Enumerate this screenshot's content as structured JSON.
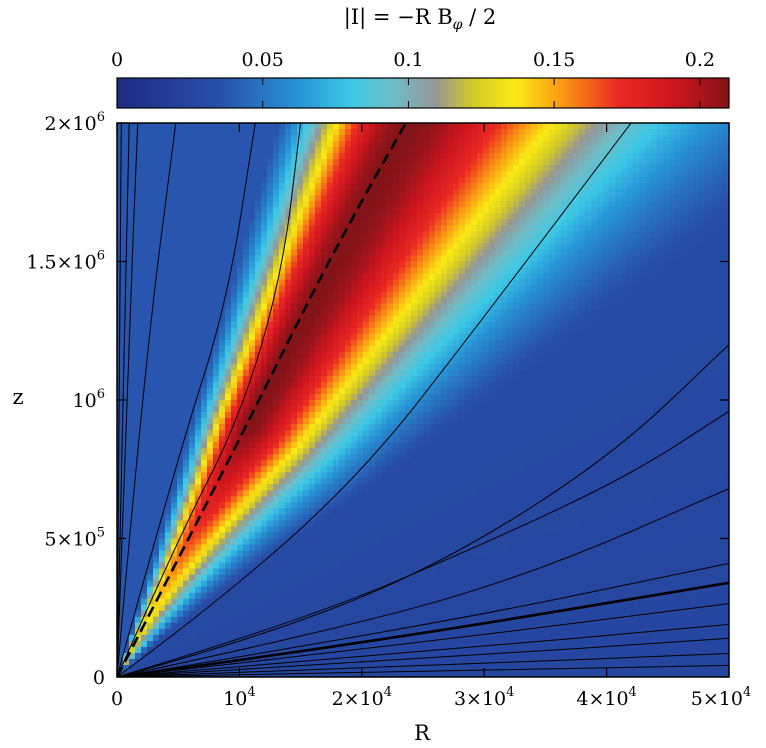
{
  "chart_data": {
    "type": "heatmap",
    "colorbar": {
      "title": "|I| = −R B",
      "title_sub": "φ",
      "title_tail": " / 2",
      "range": [
        0,
        0.21
      ],
      "ticks": [
        0,
        0.05,
        0.1,
        0.15,
        0.2
      ],
      "tick_labels": [
        "0",
        "0.05",
        "0.1",
        "0.15",
        "0.2"
      ],
      "placement": "top"
    },
    "xlabel": "R",
    "ylabel": "z",
    "xlim": [
      0,
      50000
    ],
    "ylim": [
      0,
      2000000
    ],
    "x_ticks": [
      0,
      10000,
      20000,
      30000,
      40000,
      50000
    ],
    "x_tick_labels": [
      {
        "base": "0",
        "exp": ""
      },
      {
        "base": "10",
        "exp": "4"
      },
      {
        "base": "2×10",
        "exp": "4"
      },
      {
        "base": "3×10",
        "exp": "4"
      },
      {
        "base": "4×10",
        "exp": "4"
      },
      {
        "base": "5×10",
        "exp": "4"
      }
    ],
    "y_ticks": [
      0,
      500000,
      1000000,
      1500000,
      2000000
    ],
    "y_tick_labels": [
      {
        "base": "0",
        "exp": ""
      },
      {
        "base": "5×10",
        "exp": "5"
      },
      {
        "base": "10",
        "exp": "6"
      },
      {
        "base": "1.5×10",
        "exp": "6"
      },
      {
        "base": "2×10",
        "exp": "6"
      }
    ],
    "heat_peak_slope_dz_dR": 84,
    "contours": [
      {
        "style": "thin",
        "points": [
          [
            0,
            0
          ],
          [
            1000,
            1250000
          ],
          [
            1700,
            2000000
          ]
        ]
      },
      {
        "style": "thin",
        "points": [
          [
            0,
            0
          ],
          [
            2200,
            1100000
          ],
          [
            4800,
            2000000
          ]
        ]
      },
      {
        "style": "thin",
        "points": [
          [
            0,
            0
          ],
          [
            5000,
            800000
          ],
          [
            9000,
            1350000
          ],
          [
            11300,
            2000000
          ]
        ]
      },
      {
        "style": "thin",
        "points": [
          [
            0,
            0
          ],
          [
            5000,
            500000
          ],
          [
            10000,
            930000
          ],
          [
            13500,
            1450000
          ],
          [
            15000,
            2000000
          ]
        ]
      },
      {
        "style": "dashed",
        "points": [
          [
            0,
            0
          ],
          [
            8000,
            680000
          ],
          [
            16000,
            1390000
          ],
          [
            20000,
            1720000
          ],
          [
            23600,
            2000000
          ]
        ]
      },
      {
        "style": "thin",
        "points": [
          [
            0,
            0
          ],
          [
            8000,
            260000
          ],
          [
            20000,
            730000
          ],
          [
            30000,
            1300000
          ],
          [
            42000,
            2000000
          ]
        ]
      },
      {
        "style": "thin",
        "points": [
          [
            0,
            0
          ],
          [
            15000,
            200000
          ],
          [
            30000,
            480000
          ],
          [
            42000,
            730000
          ],
          [
            50000,
            960000
          ]
        ]
      },
      {
        "style": "thin",
        "points": [
          [
            0,
            0
          ],
          [
            10000,
            120000
          ],
          [
            25000,
            370000
          ],
          [
            40000,
            780000
          ],
          [
            50000,
            1200000
          ]
        ]
      },
      {
        "style": "thin",
        "points": [
          [
            0,
            0
          ],
          [
            20000,
            190000
          ],
          [
            35000,
            390000
          ],
          [
            50000,
            680000
          ]
        ]
      },
      {
        "style": "thin",
        "points": [
          [
            0,
            0
          ],
          [
            25000,
            180000
          ],
          [
            50000,
            410000
          ]
        ]
      },
      {
        "style": "thick",
        "points": [
          [
            0,
            0
          ],
          [
            20000,
            120000
          ],
          [
            50000,
            340000
          ]
        ]
      },
      {
        "style": "thin",
        "points": [
          [
            0,
            0
          ],
          [
            25000,
            125000
          ],
          [
            50000,
            265000
          ]
        ]
      },
      {
        "style": "thin",
        "points": [
          [
            0,
            0
          ],
          [
            25000,
            90000
          ],
          [
            50000,
            190000
          ]
        ]
      },
      {
        "style": "thin",
        "points": [
          [
            0,
            0
          ],
          [
            25000,
            65000
          ],
          [
            50000,
            140000
          ]
        ]
      },
      {
        "style": "thin",
        "points": [
          [
            0,
            0
          ],
          [
            25000,
            40000
          ],
          [
            50000,
            85000
          ]
        ]
      },
      {
        "style": "thin",
        "points": [
          [
            0,
            0
          ],
          [
            25000,
            20000
          ],
          [
            50000,
            42000
          ]
        ]
      },
      {
        "style": "thin",
        "points": [
          [
            0,
            0
          ],
          [
            1000,
            2000000
          ]
        ]
      },
      {
        "style": "thin",
        "points": [
          [
            0,
            0
          ],
          [
            350,
            2000000
          ]
        ]
      }
    ]
  }
}
